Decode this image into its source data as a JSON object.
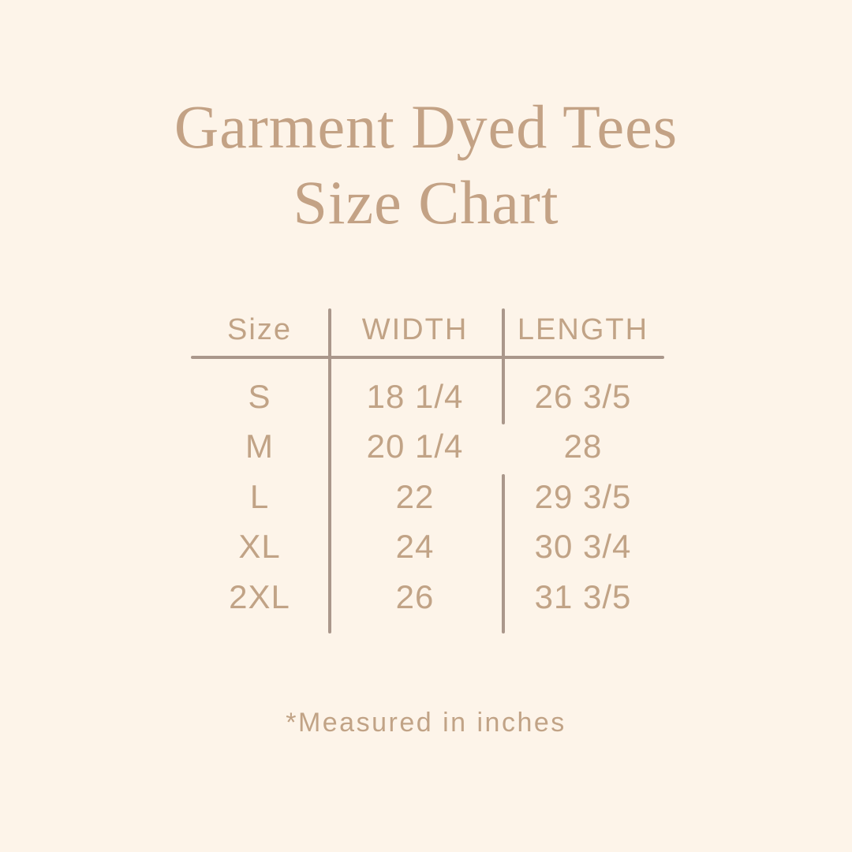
{
  "title": {
    "line1": "Garment Dyed Tees",
    "line2": "Size Chart"
  },
  "footnote": "*Measured in inches",
  "colors": {
    "background": "#fdf4e9",
    "title-color": "#c3a285",
    "text-color": "#c1a386",
    "line-color": "#aa978b"
  },
  "chart_data": {
    "type": "table",
    "title": "Garment Dyed Tees Size Chart",
    "columns": [
      "Size",
      "WIDTH",
      "LENGTH"
    ],
    "rows": [
      [
        "S",
        "18 1/4",
        "26 3/5"
      ],
      [
        "M",
        "20 1/4",
        "28"
      ],
      [
        "L",
        "22",
        "29 3/5"
      ],
      [
        "XL",
        "24",
        "30 3/4"
      ],
      [
        "2XL",
        "26",
        "31 3/5"
      ]
    ],
    "note": "*Measured in inches",
    "units": "inches",
    "layout": {
      "grid": "off",
      "header_rule": true,
      "column_dividers": true
    }
  }
}
